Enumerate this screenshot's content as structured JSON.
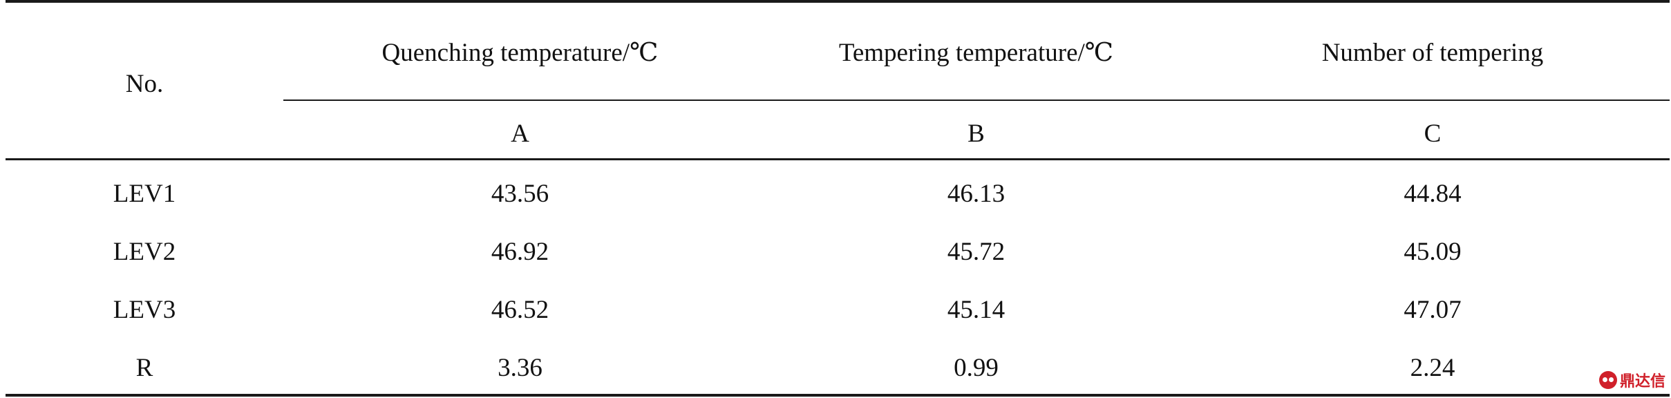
{
  "table": {
    "header": {
      "row_label": "No.",
      "factors": [
        {
          "name": "Quenching temperature/℃",
          "code": "A"
        },
        {
          "name": "Tempering temperature/℃",
          "code": "B"
        },
        {
          "name": "Number of tempering",
          "code": "C"
        }
      ]
    },
    "rows": [
      {
        "label": "LEV1",
        "values": [
          "43.56",
          "46.13",
          "44.84"
        ]
      },
      {
        "label": "LEV2",
        "values": [
          "46.92",
          "45.72",
          "45.09"
        ]
      },
      {
        "label": "LEV3",
        "values": [
          "46.52",
          "45.14",
          "47.07"
        ]
      },
      {
        "label": "R",
        "values": [
          "3.36",
          "0.99",
          "2.24"
        ]
      }
    ]
  },
  "watermark": {
    "icon": "brand-logo-icon",
    "text": "鼎达信"
  }
}
